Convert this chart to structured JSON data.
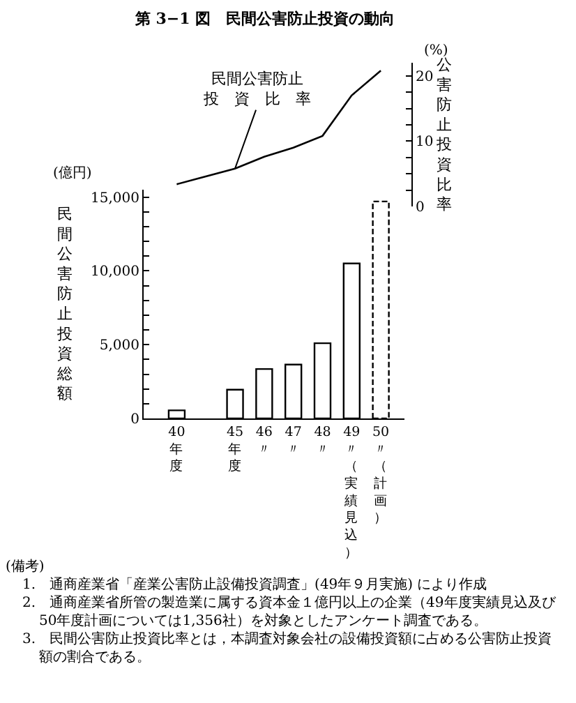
{
  "chart_data": [
    {
      "type": "line",
      "title": "第 3−1 図　民間公害防止投資の動向",
      "categories": [
        "40年度",
        null,
        "45年度",
        "46〃",
        "47〃",
        "48〃",
        "49〃（実績見込）",
        "50〃（計画）"
      ],
      "series": [
        {
          "name": "民間公害防止投資比率",
          "color": "#000000",
          "values": [
            3.4,
            null,
            5.8,
            7.6,
            9.0,
            10.8,
            17.0,
            20.8
          ]
        }
      ],
      "ylabel": "公害防止投資比率",
      "ylim": [
        0,
        22
      ],
      "yticks": [
        0,
        {
          "value": 2.5,
          "label": null
        },
        {
          "value": 5,
          "label": null
        },
        {
          "value": 7.5,
          "label": null
        },
        10,
        {
          "value": 12.5,
          "label": null
        },
        {
          "value": 15,
          "label": null
        },
        {
          "value": 17.5,
          "label": null
        },
        20
      ],
      "tick_labels": "y",
      "annotations": [
        "(%)"
      ]
    },
    {
      "type": "bar",
      "categories": [
        "40年度",
        null,
        "45年度",
        "46〃",
        "47〃",
        "48〃",
        "49〃（実績見込）",
        "50〃（計画）"
      ],
      "series": [
        {
          "color": "#000000",
          "values": [
            550,
            null,
            1950,
            3350,
            3650,
            5100,
            10500,
            null
          ]
        },
        {
          "color": "#000000",
          "line_style": "dashed",
          "values": [
            null,
            null,
            null,
            null,
            null,
            null,
            null,
            14700
          ]
        }
      ],
      "ylabel": "民間公害防止投資総額",
      "ylim": [
        0,
        15500
      ],
      "yticks": [
        0,
        {
          "value": 1000,
          "label": null
        },
        {
          "value": 2000,
          "label": null
        },
        {
          "value": 3000,
          "label": null
        },
        {
          "value": 4000,
          "label": null
        },
        {
          "value": 5000,
          "label": "5,000"
        },
        {
          "value": 6000,
          "label": null
        },
        {
          "value": 7000,
          "label": null
        },
        {
          "value": 8000,
          "label": null
        },
        {
          "value": 9000,
          "label": null
        },
        {
          "value": 10000,
          "label": "10,000"
        },
        {
          "value": 11000,
          "label": null
        },
        {
          "value": 12000,
          "label": null
        },
        {
          "value": 13000,
          "label": null
        },
        {
          "value": 14000,
          "label": null
        },
        {
          "value": 15000,
          "label": "15,000"
        }
      ],
      "annotations": [
        "(億円)",
        "(備考)",
        "1.　通商産業省「産業公害防止設備投資調査」(49年９月実施) により作成",
        "2.　通商産業省所管の製造業に属する資本金１億円以上の企業（49年度実績見込及び50年度計画については1,356社）を対象としたアンケート調査である。",
        "3.　民間公害防止投資比率とは，本調査対象会社の設備投資額に占める公害防止投資額の割合である。"
      ]
    }
  ]
}
